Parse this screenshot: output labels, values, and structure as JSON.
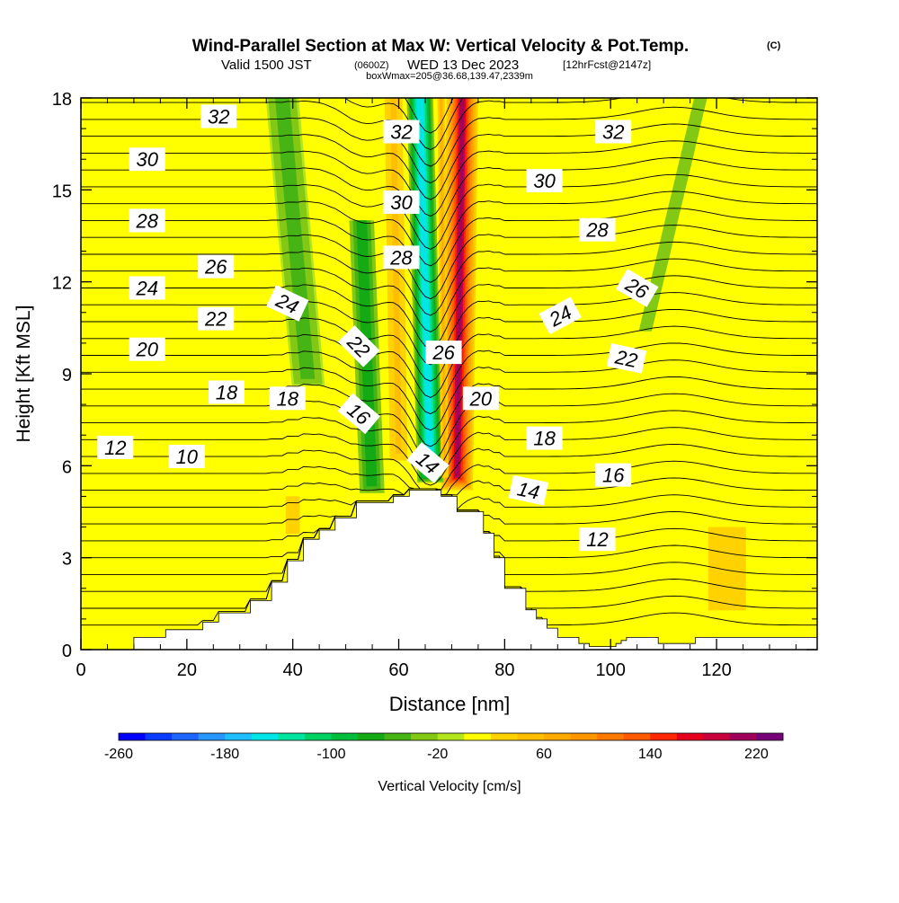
{
  "header": {
    "title": "Wind-Parallel Section at Max W: Vertical Velocity & Pot.Temp.",
    "title_mark": "(C)",
    "valid_prefix": "Valid 1500 JST",
    "valid_utc": "(0600Z)",
    "valid_date": "WED 13 Dec 2023",
    "forecast_info": "[12hrFcst@2147z]",
    "box_info": "boxWmax=205@36.68,139.47,2339m"
  },
  "chart_data": {
    "type": "heatmap",
    "title": "Wind-Parallel Section at Max W: Vertical Velocity & Pot.Temp.",
    "xlabel": "Distance [nm]",
    "ylabel": "Height [Kft MSL]",
    "xlim": [
      0,
      139
    ],
    "ylim": [
      0,
      18
    ],
    "xticks": [
      0,
      20,
      40,
      60,
      80,
      100,
      120
    ],
    "yticks": [
      0,
      3,
      6,
      9,
      12,
      15,
      18
    ],
    "grid": false,
    "colorbar": {
      "label": "Vertical Velocity [cm/s]",
      "tick_labels": [
        "-260",
        "-180",
        "-100",
        "-20",
        "60",
        "140",
        "220"
      ],
      "tick_values": [
        -260,
        -180,
        -100,
        -20,
        60,
        140,
        220
      ],
      "bin_edges": [
        -260,
        -240,
        -220,
        -200,
        -180,
        -160,
        -140,
        -120,
        -100,
        -80,
        -60,
        -40,
        -20,
        0,
        20,
        40,
        60,
        80,
        100,
        120,
        140,
        160,
        180,
        200,
        220,
        240
      ],
      "colors": [
        "#0000ff",
        "#0a3cff",
        "#1e64ff",
        "#2896ff",
        "#1ebeff",
        "#00e6e6",
        "#00e6a0",
        "#00d264",
        "#00be3c",
        "#14aa14",
        "#46b414",
        "#82c814",
        "#b4e61e",
        "#ffff00",
        "#ffd200",
        "#ffbe00",
        "#ffaa00",
        "#ff9600",
        "#ff7800",
        "#ff5a00",
        "#ff2800",
        "#e6001e",
        "#c8003c",
        "#a0005a",
        "#780078"
      ]
    },
    "vertical_velocity_features": [
      {
        "kind": "updraft",
        "x": 71,
        "x_top": 72,
        "width_nm": 3.0,
        "z_bottom": 5.2,
        "z_top": 18,
        "max_cms": 205
      },
      {
        "kind": "downdraft",
        "x": 66,
        "x_top": 64,
        "width_nm": 2.8,
        "z_bottom": 5.4,
        "z_top": 18,
        "min_cms": -160
      },
      {
        "kind": "updraft",
        "x": 68.7,
        "x_top": 68,
        "width_nm": 0.9,
        "z_bottom": 5.5,
        "z_top": 18,
        "max_cms": 60
      },
      {
        "kind": "downdraft",
        "x": 55,
        "x_top": 53,
        "width_nm": 3.0,
        "z_bottom": 5.0,
        "z_top": 14,
        "min_cms": -80
      },
      {
        "kind": "downdraft",
        "x": 43,
        "x_top": 38,
        "width_nm": 4.0,
        "z_bottom": 8.5,
        "z_top": 18,
        "min_cms": -60
      },
      {
        "kind": "downdraft",
        "x": 106,
        "x_top": 117,
        "width_nm": 5.5,
        "z_bottom": 10.0,
        "z_top": 18,
        "min_cms": -25
      },
      {
        "kind": "updraft",
        "x": 60,
        "x_top": 59,
        "width_nm": 2.5,
        "z_bottom": 6.0,
        "z_top": 18,
        "max_cms": 50
      },
      {
        "kind": "updraft",
        "x": 122,
        "x_top": 122,
        "width_nm": 8.0,
        "z_bottom": 1.0,
        "z_top": 4.0,
        "max_cms": 30
      },
      {
        "kind": "updraft",
        "x": 40,
        "x_top": 40,
        "width_nm": 3.0,
        "z_bottom": 3.5,
        "z_top": 5.0,
        "max_cms": 30
      }
    ],
    "terrain": {
      "x": [
        0,
        10,
        10,
        16,
        16,
        23,
        23,
        26,
        26,
        32,
        32,
        36,
        36,
        39,
        39,
        42,
        42,
        45,
        45,
        48,
        48,
        52,
        52,
        59,
        59,
        62,
        62,
        68,
        68,
        71,
        71,
        76,
        76,
        78,
        78,
        80,
        80,
        84,
        84,
        86,
        86,
        88,
        88,
        90,
        90,
        94,
        94,
        96,
        96,
        98,
        98,
        100,
        100,
        101,
        101,
        102,
        102,
        103,
        103,
        104,
        104,
        109,
        109,
        114,
        114,
        116,
        116,
        139
      ],
      "height_kft": [
        0,
        0,
        0.4,
        0.4,
        0.65,
        0.65,
        0.9,
        0.9,
        1.2,
        1.2,
        1.6,
        1.6,
        2.2,
        2.2,
        2.9,
        2.9,
        3.6,
        3.6,
        3.9,
        3.9,
        4.3,
        4.3,
        4.8,
        4.8,
        5.0,
        5.0,
        5.2,
        5.2,
        5.0,
        5.0,
        4.5,
        4.5,
        3.8,
        3.8,
        3.0,
        3.0,
        2.0,
        2.0,
        1.3,
        1.3,
        1.0,
        1.0,
        0.7,
        0.7,
        0.4,
        0.4,
        0.2,
        0.2,
        0.1,
        0.1,
        0.1,
        0.1,
        0.1,
        0.1,
        0.2,
        0.2,
        0.3,
        0.3,
        0.4,
        0.4,
        0.4,
        0.4,
        0.2,
        0.2,
        0.2,
        0.2,
        0.4,
        0.4
      ]
    },
    "isentrope_labels": [
      {
        "text": "32",
        "x": 26,
        "y": 17.4,
        "rot": 0
      },
      {
        "text": "32",
        "x": 60.5,
        "y": 16.9,
        "rot": 0
      },
      {
        "text": "32",
        "x": 100.5,
        "y": 16.9,
        "rot": 0
      },
      {
        "text": "30",
        "x": 12.5,
        "y": 16.0,
        "rot": 0
      },
      {
        "text": "30",
        "x": 60.5,
        "y": 14.6,
        "rot": 0
      },
      {
        "text": "30",
        "x": 87.5,
        "y": 15.3,
        "rot": 0
      },
      {
        "text": "28",
        "x": 12.5,
        "y": 14.0,
        "rot": 0
      },
      {
        "text": "28",
        "x": 60.5,
        "y": 12.8,
        "rot": 0
      },
      {
        "text": "28",
        "x": 97.5,
        "y": 13.7,
        "rot": 0
      },
      {
        "text": "26",
        "x": 25.5,
        "y": 12.5,
        "rot": 0
      },
      {
        "text": "26",
        "x": 68.5,
        "y": 9.7,
        "rot": 0
      },
      {
        "text": "26",
        "x": 105,
        "y": 11.8,
        "rot": 30
      },
      {
        "text": "24",
        "x": 12.5,
        "y": 11.8,
        "rot": 0
      },
      {
        "text": "24",
        "x": 39,
        "y": 11.3,
        "rot": 25
      },
      {
        "text": "24",
        "x": 90.5,
        "y": 10.9,
        "rot": -28
      },
      {
        "text": "22",
        "x": 25.5,
        "y": 10.8,
        "rot": 0
      },
      {
        "text": "22",
        "x": 52.5,
        "y": 9.9,
        "rot": 45
      },
      {
        "text": "22",
        "x": 103,
        "y": 9.5,
        "rot": 12
      },
      {
        "text": "20",
        "x": 12.5,
        "y": 9.8,
        "rot": 0
      },
      {
        "text": "20",
        "x": 75.5,
        "y": 8.2,
        "rot": 0
      },
      {
        "text": "18",
        "x": 27.5,
        "y": 8.4,
        "rot": 0
      },
      {
        "text": "18",
        "x": 39,
        "y": 8.2,
        "rot": 0
      },
      {
        "text": "18",
        "x": 87.5,
        "y": 6.9,
        "rot": 0
      },
      {
        "text": "16",
        "x": 52.5,
        "y": 7.7,
        "rot": 40
      },
      {
        "text": "16",
        "x": 100.5,
        "y": 5.7,
        "rot": 0
      },
      {
        "text": "14",
        "x": 65.5,
        "y": 6.1,
        "rot": 40
      },
      {
        "text": "14",
        "x": 84.5,
        "y": 5.2,
        "rot": 12
      },
      {
        "text": "12",
        "x": 6.5,
        "y": 6.6,
        "rot": 0
      },
      {
        "text": "12",
        "x": 97.5,
        "y": 3.6,
        "rot": 0
      },
      {
        "text": "10",
        "x": 20,
        "y": 6.3,
        "rot": 0
      }
    ]
  }
}
